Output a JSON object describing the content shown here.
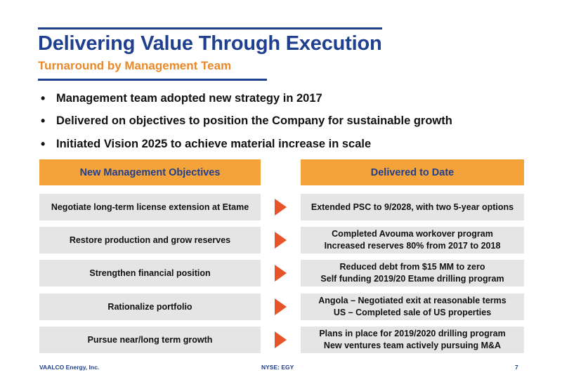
{
  "slide": {
    "title": "Delivering Value Through Execution",
    "subtitle": "Turnaround by Management Team"
  },
  "bullets": [
    "Management team adopted new strategy in 2017",
    "Delivered on objectives to position the Company for sustainable growth",
    "Initiated Vision 2025 to achieve material increase in scale"
  ],
  "table": {
    "left_header": "New Management Objectives",
    "right_header": "Delivered to Date",
    "rows": [
      {
        "objective": "Negotiate long-term license extension at Etame",
        "delivered": [
          "Extended PSC to 9/2028, with two 5-year options"
        ]
      },
      {
        "objective": "Restore production and grow reserves",
        "delivered": [
          "Completed Avouma workover program",
          "Increased reserves 80% from 2017 to 2018"
        ]
      },
      {
        "objective": "Strengthen financial position",
        "delivered": [
          "Reduced debt from $15 MM to zero",
          "Self funding 2019/20 Etame drilling program"
        ]
      },
      {
        "objective": "Rationalize portfolio",
        "delivered": [
          "Angola – Negotiated exit at reasonable terms",
          "US – Completed sale of US properties"
        ]
      },
      {
        "objective": "Pursue near/long term growth",
        "delivered": [
          "Plans in place for 2019/2020 drilling program",
          "New ventures team actively pursuing M&A"
        ]
      }
    ]
  },
  "footer": {
    "company": "VAALCO Energy, Inc.",
    "ticker": "NYSE: EGY",
    "page_number": "7"
  },
  "colors": {
    "navy": "#1f3f8f",
    "orange_header": "#f4a23a",
    "orange_text": "#e8892a",
    "arrow": "#e8532a",
    "cell_gray": "#e5e5e5"
  },
  "icons": {
    "row_arrow": "arrow-right-icon"
  }
}
